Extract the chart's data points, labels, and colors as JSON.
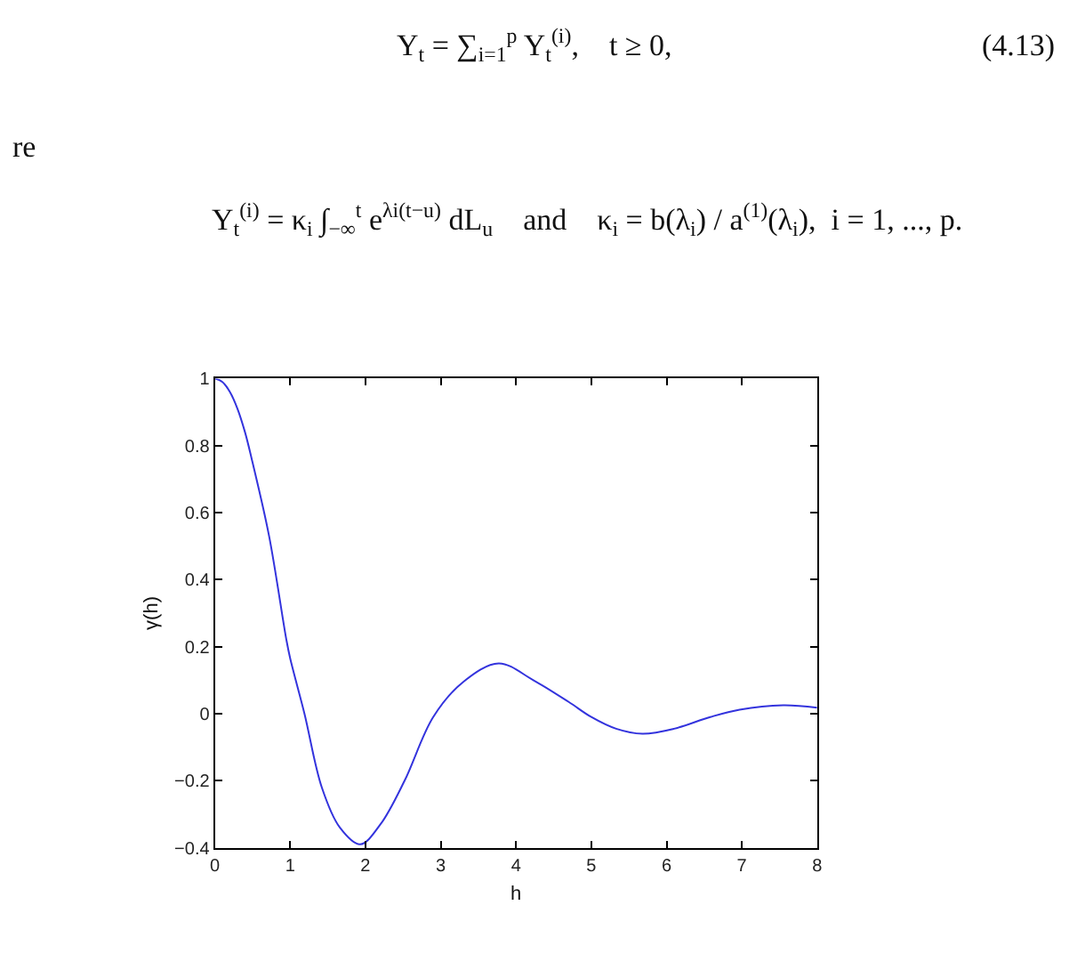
{
  "chart_data": {
    "type": "line",
    "xlabel": "h",
    "ylabel": "γ(h)",
    "x": [
      0,
      0.1,
      0.2,
      0.3,
      0.4,
      0.5,
      0.72,
      0.95,
      1.0,
      1.19,
      1.42,
      1.66,
      1.93,
      2.2,
      2.52,
      2.9,
      3.3,
      3.77,
      4.23,
      4.7,
      5.0,
      5.33,
      5.68,
      6.1,
      6.58,
      6.97,
      7.55,
      8.0
    ],
    "series": [
      {
        "color": "#3333dd",
        "values": [
          1,
          0.99,
          0.96,
          0.91,
          0.84,
          0.75,
          0.53,
          0.22,
          0.165,
          0.0,
          -0.22,
          -0.34,
          -0.39,
          -0.33,
          -0.2,
          -0.01,
          0.095,
          0.15,
          0.1,
          0.035,
          -0.01,
          -0.045,
          -0.06,
          -0.045,
          -0.01,
          0.012,
          0.025,
          0.018
        ]
      }
    ],
    "xlim": [
      0,
      8
    ],
    "xticks": [
      0,
      1,
      2,
      3,
      4,
      5,
      6,
      7,
      8
    ],
    "ylim": [
      -0.4,
      1
    ],
    "yticks": [
      {
        "value": -0.4,
        "label": "−0.4"
      },
      {
        "value": -0.2,
        "label": "−0.2"
      },
      0,
      0.2,
      0.4,
      0.6,
      0.8,
      1
    ],
    "marker": "none",
    "line_style": "solid",
    "annotations": [
      "Y$_{t}$ = ∑$_{i=1}$$^{p}$ Y$_{t}$$^{(i)}$,    t ≥ 0,",
      "(4.13)",
      "re",
      "Y$_{t}$$^{(i)}$ = κ$_{i}$ ∫$_{−∞}$$^{t}$ e$^{λi(t−u)}$ dL$_{u}$    and    κ$_{i}$ = b(λ$_{i}$) / a$^{(1)}$(λ$_{i}$),  i = 1, ..., p."
    ]
  }
}
